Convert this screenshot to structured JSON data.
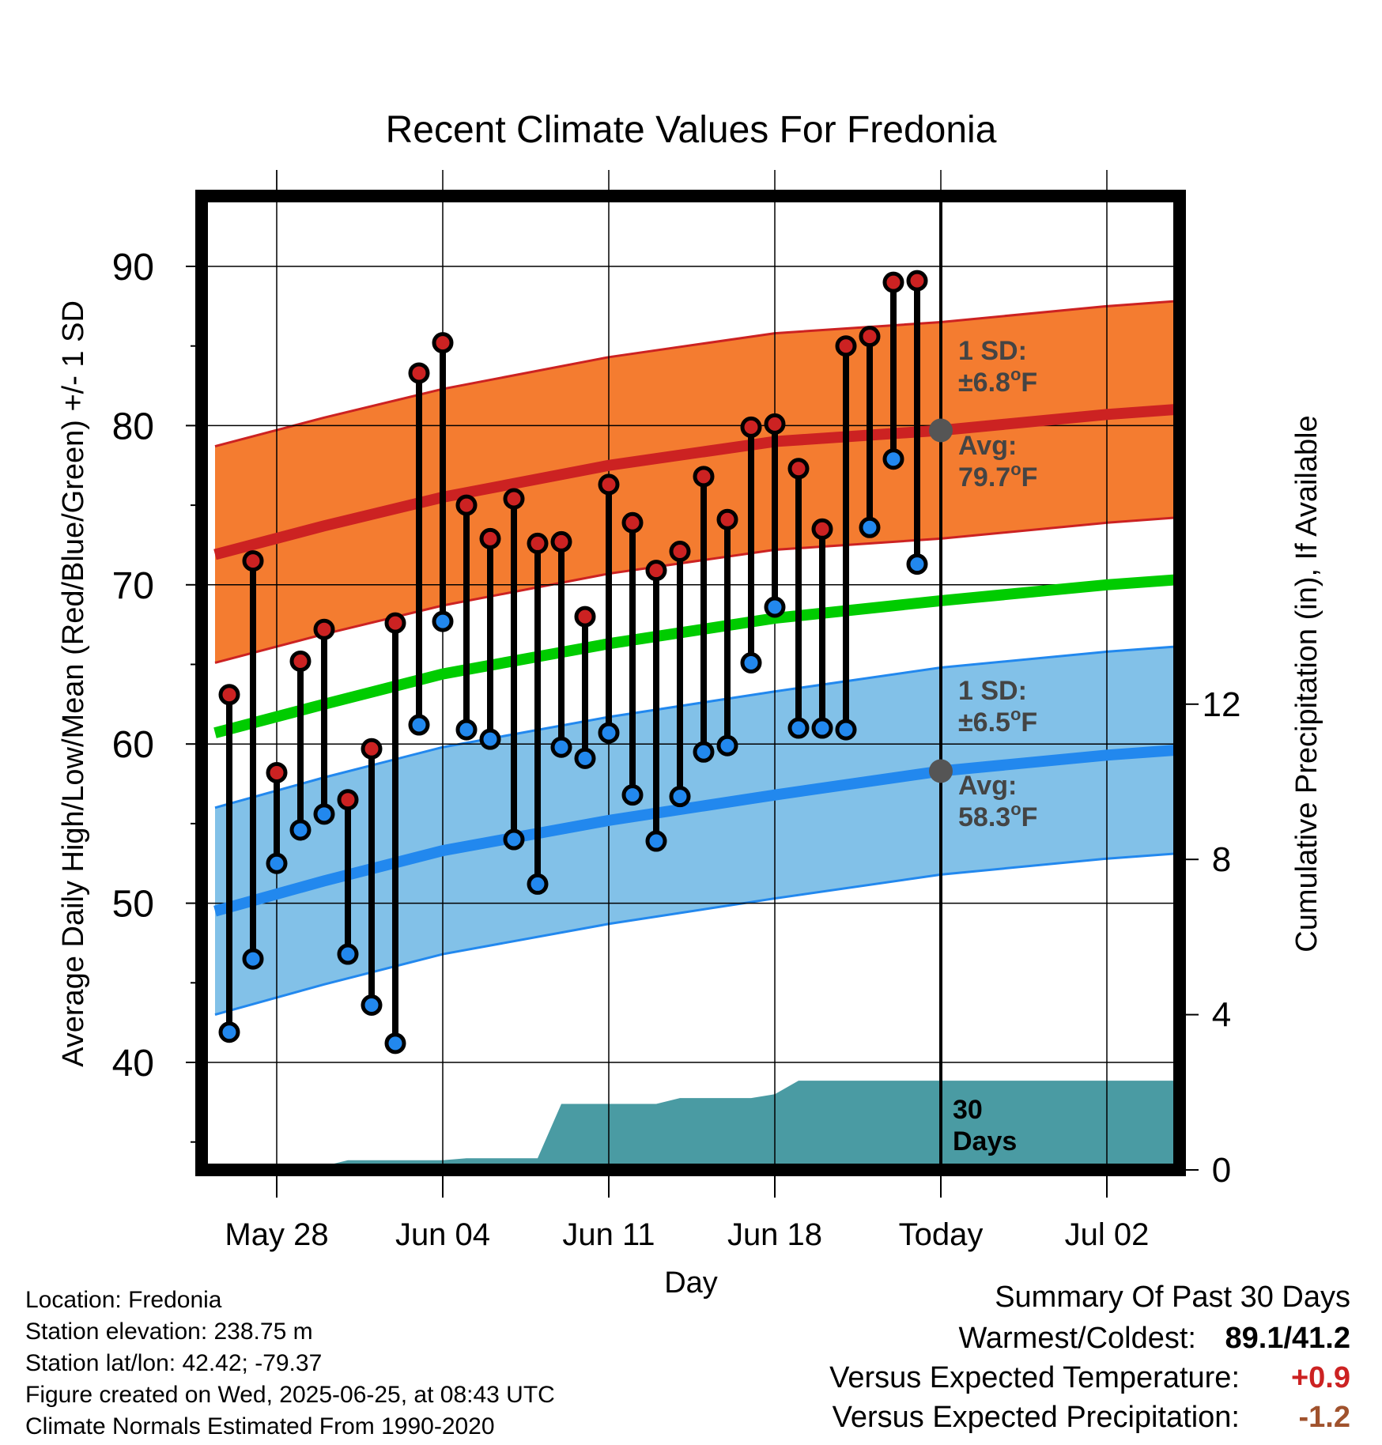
{
  "chart_data": {
    "type": "line",
    "title": "Recent Climate Values For Fredonia",
    "xlabel": "Day",
    "ylabel": "Average Daily High/Low/Mean (Red/Blue/Green) +/- 1 SD",
    "y2label": "Cumulative Precipitation (in), If Available",
    "xlim": [
      -3.3,
      40.3
    ],
    "ylim": [
      33.7,
      94.5
    ],
    "y2lim": [
      0,
      29
    ],
    "x_ticks": [
      {
        "x": 0,
        "label": "May 28"
      },
      {
        "x": 7,
        "label": "Jun 04"
      },
      {
        "x": 14,
        "label": "Jun 11"
      },
      {
        "x": 21,
        "label": "Jun 18"
      },
      {
        "x": 28,
        "label": "Today"
      },
      {
        "x": 35,
        "label": "Jul 02"
      }
    ],
    "y_ticks": [
      40,
      50,
      60,
      70,
      80,
      90
    ],
    "y2_ticks": [
      0,
      4,
      8,
      12
    ],
    "grid": true,
    "today_x": 28,
    "series": [
      {
        "name": "High",
        "color": "#cc2222",
        "x": [
          -2,
          -1,
          0,
          1,
          2,
          3,
          4,
          5,
          6,
          7,
          8,
          9,
          10,
          11,
          12,
          13,
          14,
          15,
          16,
          17,
          18,
          19,
          20,
          21,
          22,
          23,
          24,
          25,
          26,
          27
        ],
        "values": [
          63.1,
          71.5,
          58.2,
          65.2,
          67.2,
          56.5,
          59.7,
          67.6,
          83.3,
          85.2,
          75.0,
          72.9,
          75.4,
          72.6,
          72.7,
          68.0,
          76.3,
          73.9,
          70.9,
          72.1,
          76.8,
          74.1,
          79.9,
          80.1,
          77.3,
          73.5,
          85.0,
          85.6,
          89.0,
          89.1
        ]
      },
      {
        "name": "Low",
        "color": "#2288ee",
        "x": [
          -2,
          -1,
          0,
          1,
          2,
          3,
          4,
          5,
          6,
          7,
          8,
          9,
          10,
          11,
          12,
          13,
          14,
          15,
          16,
          17,
          18,
          19,
          20,
          21,
          22,
          23,
          24,
          25,
          26,
          27
        ],
        "values": [
          41.9,
          46.5,
          52.5,
          54.6,
          55.6,
          46.8,
          43.6,
          41.2,
          61.2,
          67.7,
          60.9,
          60.3,
          54.0,
          51.2,
          59.8,
          59.1,
          60.7,
          56.8,
          53.9,
          56.7,
          59.5,
          59.9,
          65.1,
          68.6,
          61.0,
          61.0,
          60.9,
          73.6,
          77.9,
          71.3
        ]
      },
      {
        "name": "Normal High",
        "color": "#cc2222",
        "x": [
          -2.6,
          2,
          7,
          14,
          21,
          28,
          35,
          39.6
        ],
        "values": [
          71.9,
          73.7,
          75.5,
          77.5,
          79.0,
          79.7,
          80.7,
          81.2
        ],
        "sd": 6.8
      },
      {
        "name": "Normal Low",
        "color": "#2288ee",
        "x": [
          -2.6,
          2,
          7,
          14,
          21,
          28,
          35,
          39.6
        ],
        "values": [
          49.5,
          51.4,
          53.3,
          55.2,
          56.8,
          58.3,
          59.3,
          59.8
        ],
        "sd": 6.5
      },
      {
        "name": "Normal Mean",
        "color": "#00cc00",
        "x": [
          -2.6,
          2,
          7,
          14,
          21,
          28,
          35,
          39.6
        ],
        "values": [
          60.7,
          62.5,
          64.4,
          66.3,
          67.9,
          69.0,
          70.0,
          70.5
        ]
      },
      {
        "name": "Cumulative Precipitation",
        "color": "#4a9ba3",
        "x": [
          -2.6,
          0,
          2,
          3,
          7,
          8,
          11,
          12,
          16,
          17,
          20,
          21,
          22,
          27,
          28,
          39.6
        ],
        "values": [
          0,
          0.05,
          0.1,
          0.25,
          0.25,
          0.3,
          0.3,
          1.7,
          1.7,
          1.85,
          1.85,
          1.95,
          2.3,
          2.3,
          2.3,
          2.3
        ]
      }
    ],
    "annotations": {
      "high_sd": {
        "line1": "1 SD:",
        "line2": "±6.8",
        "unit": "oF"
      },
      "high_avg": {
        "line1": "Avg:",
        "line2": "79.7",
        "unit": "oF"
      },
      "low_sd": {
        "line1": "1 SD:",
        "line2": "±6.5",
        "unit": "oF"
      },
      "low_avg": {
        "line1": "Avg:",
        "line2": "58.3",
        "unit": "oF"
      },
      "days": {
        "line1": "30",
        "line2": "Days"
      }
    }
  },
  "info": {
    "location": "Location: Fredonia",
    "elevation": "Station elevation: 238.75 m",
    "latlon": "Station lat/lon: 42.42; -79.37",
    "created": "Figure created on Wed, 2025-06-25, at 08:43 UTC",
    "normals": "Climate Normals Estimated From 1990-2020"
  },
  "summary": {
    "title": "Summary Of Past 30 Days",
    "warmest_label": "Warmest/Coldest:",
    "warmest_value": "89.1/41.2",
    "temp_label": "Versus Expected Temperature:",
    "temp_value": "+0.9",
    "temp_color": "#cc2222",
    "precip_label": "Versus Expected Precipitation:",
    "precip_value": "-1.2",
    "precip_color": "#a0522d"
  }
}
